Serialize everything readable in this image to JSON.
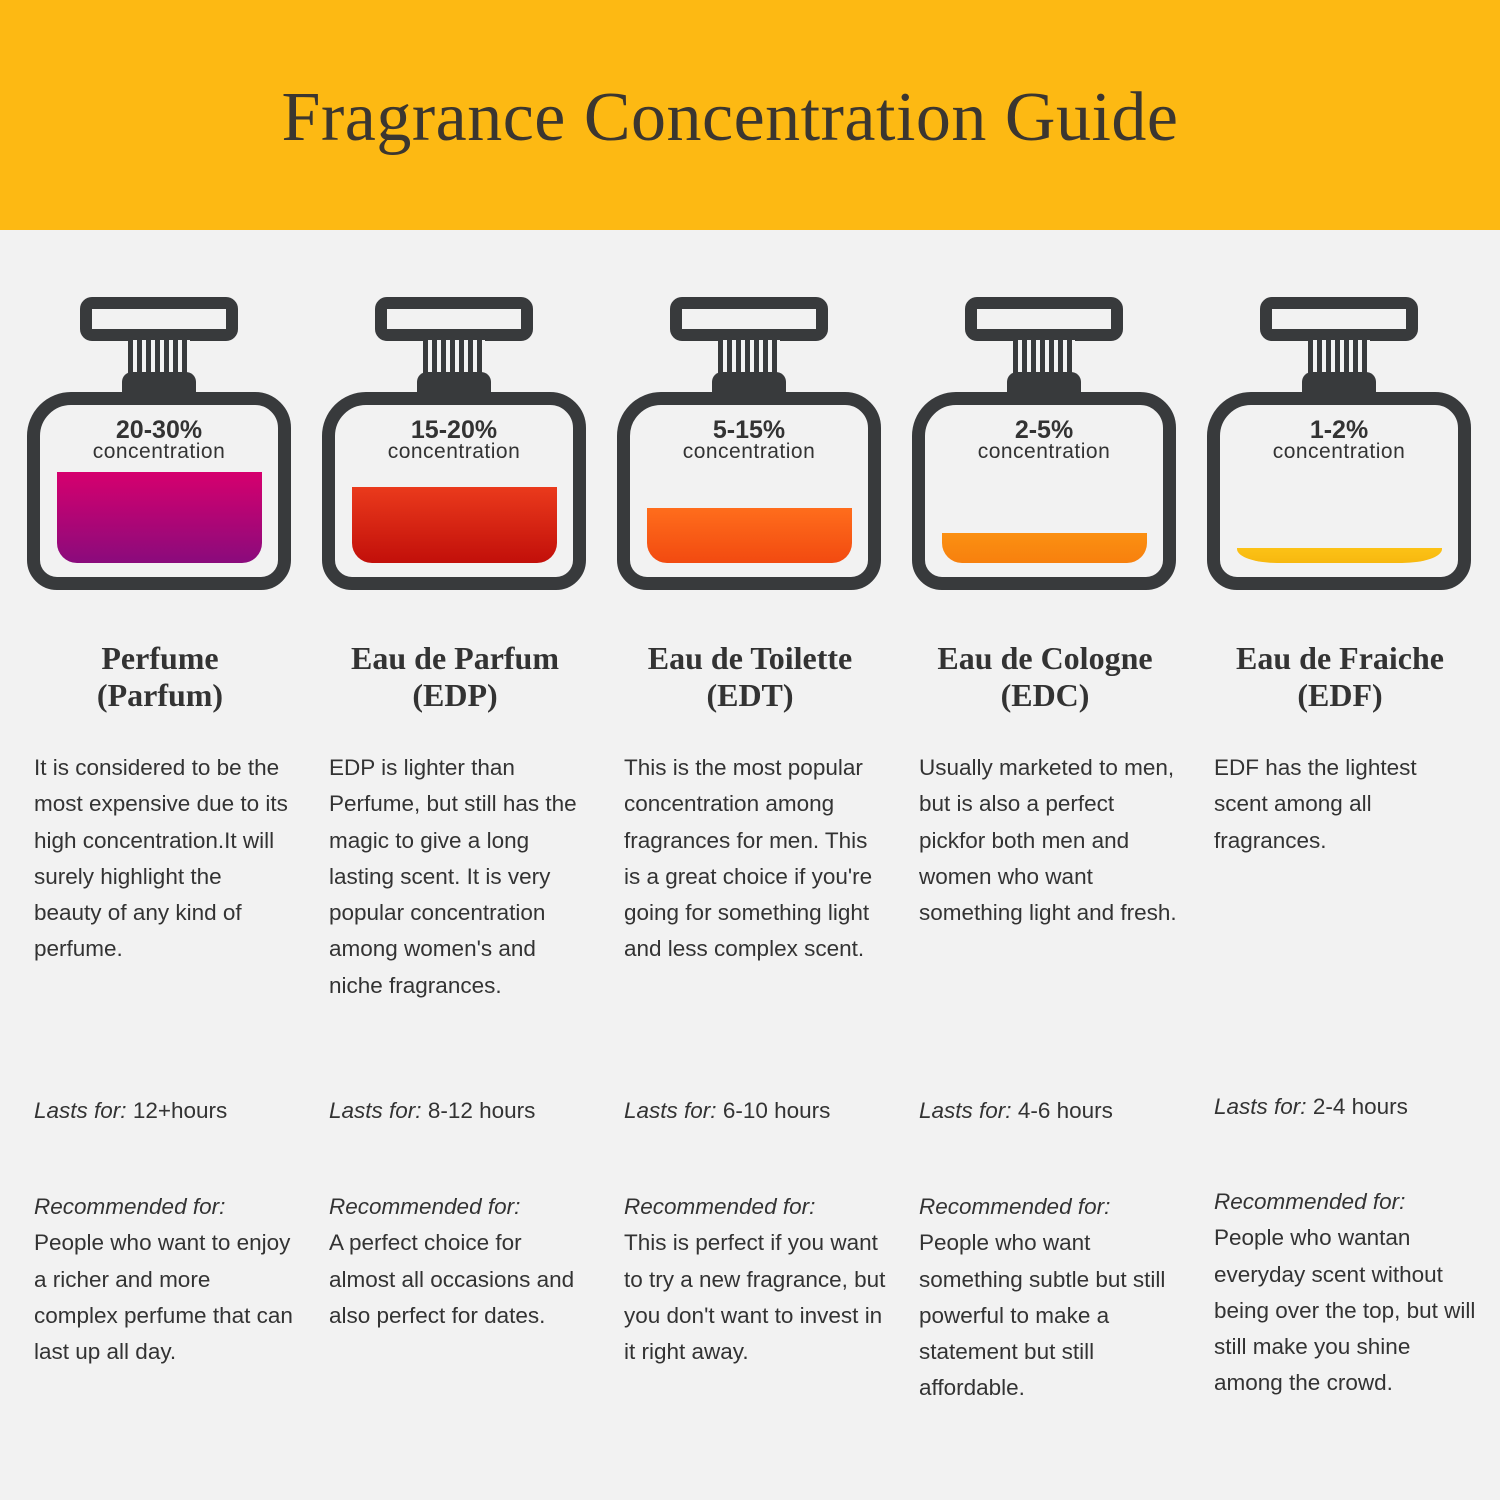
{
  "title": "Fragrance Concentration Guide",
  "colors": {
    "header": "#fdb913",
    "bottle": "#383a3c",
    "background": "#f2f2f2"
  },
  "lasts_label": "Lasts for:",
  "recommended_label": "Recommended for:",
  "concentration_word": "concentration",
  "types": [
    {
      "percent": "20-30%",
      "name_line1": "Perfume",
      "name_line2": "(Parfum)",
      "liquid_color": [
        "#d6006e",
        "#8a0b7c"
      ],
      "description": "It is considered to be the most expensive due to its high concentration.It will surely highlight the beauty of any kind of perfume.",
      "lasts": "12+hours",
      "recommended": "People who want to enjoy a richer and more complex perfume that can last up all day."
    },
    {
      "percent": "15-20%",
      "name_line1": "Eau de Parfum",
      "name_line2": "(EDP)",
      "liquid_color": [
        "#ea3a1c",
        "#c20f0a"
      ],
      "description": "EDP is lighter than Perfume, but still has the magic to give a long lasting scent. It is very popular concentration among women's and niche fragrances.",
      "lasts": "8-12 hours",
      "recommended": "A perfect choice for almost all occasions and also perfect for dates."
    },
    {
      "percent": "5-15%",
      "name_line1": "Eau de Toilette",
      "name_line2": "(EDT)",
      "liquid_color": [
        "#ff6d1c",
        "#f24a10"
      ],
      "description": "This is the most popular concentration among fragrances for men. This is a great choice if you're going for something light and less complex scent.",
      "lasts": "6-10 hours",
      "recommended": "This is perfect if you want to try a new fragrance, but you don't want to invest in it right away."
    },
    {
      "percent": "2-5%",
      "name_line1": "Eau de Cologne",
      "name_line2": "(EDC)",
      "liquid_color": [
        "#fb9012",
        "#f7800e"
      ],
      "description": "Usually marketed to men, but is also a perfect pickfor both men and women who want something light and fresh.",
      "lasts": "4-6 hours",
      "recommended": "People who want something subtle but still powerful to make a statement but still affordable."
    },
    {
      "percent": "1-2%",
      "name_line1": "Eau de Fraiche",
      "name_line2": "(EDF)",
      "liquid_color": [
        "#fcc216",
        "#f7b80f"
      ],
      "description": "EDF has the lightest scent among all fragrances.",
      "lasts": "2-4 hours",
      "recommended": "People who wantan everyday scent without being over the top, but will still make you shine among the crowd."
    }
  ]
}
